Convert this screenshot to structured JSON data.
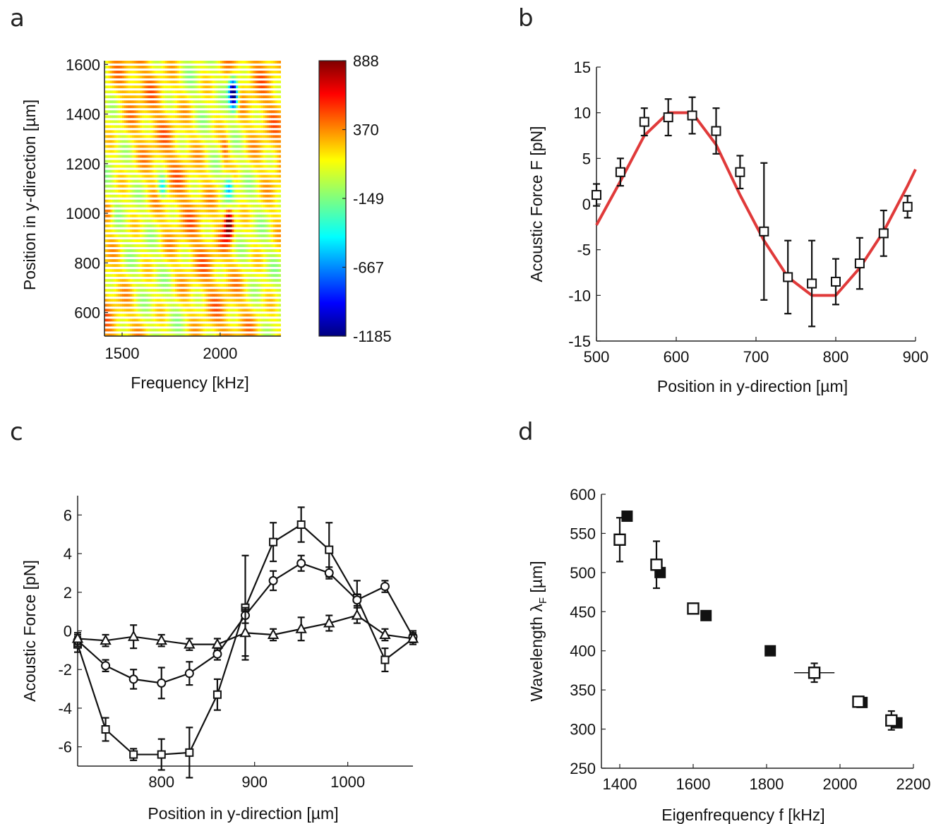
{
  "panels": {
    "a": "a",
    "b": "b",
    "c": "c",
    "d": "d"
  },
  "chart_data": [
    {
      "id": "a",
      "type": "heatmap",
      "xlabel": "Frequency [kHz]",
      "ylabel": "Position in y-direction [µm]",
      "xlim": [
        1410,
        2310
      ],
      "ylim": [
        505,
        1615
      ],
      "xticks": [
        "1500",
        "2000"
      ],
      "yticks": [
        "600",
        "800",
        "1000",
        "1200",
        "1400",
        "1600"
      ],
      "colorbar_ticks": [
        "888",
        "370",
        "-149",
        "-667",
        "-1185"
      ],
      "colorbar_range": [
        -1185,
        888
      ],
      "row_spacing_um": 20,
      "features": [
        {
          "x": 2060,
          "y": 1500,
          "value": -1000
        },
        {
          "x": 2065,
          "y": 1450,
          "value": -900
        },
        {
          "x": 2020,
          "y": 1260,
          "value": 500
        },
        {
          "x": 2020,
          "y": 1200,
          "value": 300
        },
        {
          "x": 2040,
          "y": 1100,
          "value": -500
        },
        {
          "x": 2040,
          "y": 980,
          "value": 888
        },
        {
          "x": 2040,
          "y": 930,
          "value": 800
        },
        {
          "x": 2010,
          "y": 880,
          "value": 300
        },
        {
          "x": 1950,
          "y": 800,
          "value": 200
        },
        {
          "x": 1430,
          "y": 1000,
          "value": 450
        },
        {
          "x": 1560,
          "y": 1500,
          "value": 300
        },
        {
          "x": 1700,
          "y": 1100,
          "value": -500
        }
      ]
    },
    {
      "id": "b",
      "type": "scatter",
      "xlabel": "Position in y-direction [µm]",
      "ylabel": "Acoustic Force F [pN]",
      "xlim": [
        500,
        900
      ],
      "ylim": [
        -15,
        15
      ],
      "xticks": [
        "500",
        "600",
        "700",
        "800",
        "900"
      ],
      "yticks": [
        "15",
        "10",
        "5",
        "0",
        "-5",
        "-10",
        "-15"
      ],
      "points": [
        {
          "x": 500,
          "y": 1.0,
          "err": 1.2
        },
        {
          "x": 530,
          "y": 3.5,
          "err": 1.5
        },
        {
          "x": 560,
          "y": 9.0,
          "err": 1.5
        },
        {
          "x": 590,
          "y": 9.5,
          "err": 2.0
        },
        {
          "x": 620,
          "y": 9.7,
          "err": 2.0
        },
        {
          "x": 650,
          "y": 8.0,
          "err": 2.5
        },
        {
          "x": 680,
          "y": 3.5,
          "err": 1.8
        },
        {
          "x": 710,
          "y": -3.0,
          "err": 7.5
        },
        {
          "x": 740,
          "y": -8.0,
          "err": 4.0
        },
        {
          "x": 770,
          "y": -8.7,
          "err": 4.7
        },
        {
          "x": 800,
          "y": -8.5,
          "err": 2.5
        },
        {
          "x": 830,
          "y": -6.5,
          "err": 2.8
        },
        {
          "x": 860,
          "y": -3.2,
          "err": 2.5
        },
        {
          "x": 890,
          "y": -0.3,
          "err": 1.2
        }
      ],
      "fit": {
        "x": [
          500,
          530,
          560,
          590,
          620,
          650,
          680,
          710,
          740,
          770,
          800,
          830,
          860,
          890,
          900
        ],
        "y": [
          -2.3,
          2.5,
          7.5,
          10.0,
          10.0,
          6.5,
          1.0,
          -4.0,
          -8.0,
          -10.0,
          -10.0,
          -7.0,
          -3.0,
          2.0,
          3.8
        ],
        "color": "#e03a3a"
      }
    },
    {
      "id": "c",
      "type": "line",
      "xlabel": "Position in y-direction [µm]",
      "ylabel": "Acoustic Force [pN]",
      "xlim": [
        710,
        1070
      ],
      "ylim": [
        -7,
        7
      ],
      "xticks": [
        "800",
        "900",
        "1000"
      ],
      "yticks": [
        "6",
        "4",
        "2",
        "0",
        "-2",
        "-4",
        "-6"
      ],
      "x": [
        710,
        740,
        770,
        800,
        830,
        860,
        890,
        920,
        950,
        980,
        1010,
        1040,
        1070
      ],
      "series": [
        {
          "marker": "square",
          "values": [
            -0.7,
            -5.1,
            -6.4,
            -6.4,
            -6.3,
            -3.3,
            1.2,
            4.6,
            5.5,
            4.2,
            1.7,
            -1.5,
            -0.4
          ],
          "errors": [
            0.4,
            0.6,
            0.3,
            0.8,
            1.3,
            0.8,
            2.7,
            1.0,
            0.9,
            1.4,
            0.9,
            0.6,
            0.3
          ]
        },
        {
          "marker": "circle",
          "values": [
            -0.5,
            -1.8,
            -2.5,
            -2.7,
            -2.2,
            -1.2,
            0.8,
            2.6,
            3.5,
            3.0,
            1.6,
            2.3,
            -0.3
          ],
          "errors": [
            0.3,
            0.3,
            0.5,
            0.8,
            0.6,
            0.3,
            0.4,
            0.5,
            0.4,
            0.3,
            0.3,
            0.3,
            0.3
          ]
        },
        {
          "marker": "triangle",
          "values": [
            -0.4,
            -0.5,
            -0.3,
            -0.5,
            -0.7,
            -0.7,
            -0.1,
            -0.2,
            0.1,
            0.4,
            0.8,
            -0.2,
            -0.4
          ],
          "errors": [
            0.3,
            0.3,
            0.6,
            0.3,
            0.3,
            0.3,
            1.2,
            0.3,
            0.6,
            0.4,
            0.4,
            0.3,
            0.2
          ]
        }
      ]
    },
    {
      "id": "d",
      "type": "scatter",
      "xlabel": "Eigenfrequency f [kHz]",
      "ylabel": "Wavelength λ",
      "ylabel_sub": "F",
      "ylabel_unit": " [µm]",
      "xlim": [
        1350,
        2200
      ],
      "ylim": [
        250,
        600
      ],
      "xticks": [
        "1400",
        "1600",
        "1800",
        "2000",
        "2200"
      ],
      "yticks": [
        "600",
        "550",
        "500",
        "450",
        "400",
        "350",
        "300",
        "250"
      ],
      "series": [
        {
          "marker": "open-square",
          "points": [
            {
              "x": 1400,
              "y": 542,
              "yerr": 28,
              "xerr": 0
            },
            {
              "x": 1500,
              "y": 510,
              "yerr": 30,
              "xerr": 0
            },
            {
              "x": 1600,
              "y": 454,
              "yerr": 6,
              "xerr": 12
            },
            {
              "x": 1930,
              "y": 372,
              "yerr": 12,
              "xerr": 55
            },
            {
              "x": 2050,
              "y": 335,
              "yerr": 4,
              "xerr": 8
            },
            {
              "x": 2140,
              "y": 311,
              "yerr": 12,
              "xerr": 6
            }
          ]
        },
        {
          "marker": "filled-square",
          "points": [
            {
              "x": 1420,
              "y": 572
            },
            {
              "x": 1510,
              "y": 500
            },
            {
              "x": 1635,
              "y": 445
            },
            {
              "x": 1810,
              "y": 400
            },
            {
              "x": 2060,
              "y": 334
            },
            {
              "x": 2155,
              "y": 308
            }
          ]
        }
      ]
    }
  ]
}
